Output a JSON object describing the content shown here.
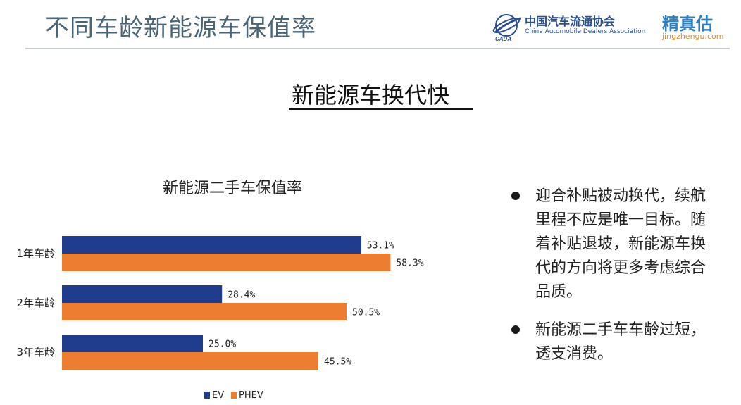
{
  "header": {
    "title": "不同车龄新能源车保值率",
    "cada_logo": {
      "name_cn": "中国汽车流通协会",
      "name_en": "China Automobile Dealers Association",
      "abbr": "CADA"
    },
    "jzg_logo": {
      "name_cn": "精真估",
      "url": "jingzhengu.com"
    }
  },
  "subtitle": "新能源车换代快",
  "side_notes": [
    "迎合补贴被动换代，续航里程不应是唯一目标。随着补贴退坡，新能源车换代的方向将更多考虑综合品质。",
    "新能源二手车车龄过短，透支消费。"
  ],
  "colors": {
    "ev": "#1f3d8c",
    "phev": "#ed7d31",
    "title_blue": "#4a6478"
  },
  "chart_data": {
    "type": "bar",
    "orientation": "horizontal",
    "title": "新能源二手车保值率",
    "categories": [
      "1年车龄",
      "2年车龄",
      "3年车龄"
    ],
    "series": [
      {
        "name": "EV",
        "values": [
          53.1,
          28.4,
          25.0
        ],
        "labels": [
          "53.1%",
          "28.4%",
          "25.0%"
        ],
        "color": "#1f3d8c"
      },
      {
        "name": "PHEV",
        "values": [
          58.3,
          50.5,
          45.5
        ],
        "labels": [
          "58.3%",
          "50.5%",
          "45.5%"
        ],
        "color": "#ed7d31"
      }
    ],
    "xlim": [
      0,
      100
    ],
    "grid": false,
    "legend": "bottom"
  }
}
